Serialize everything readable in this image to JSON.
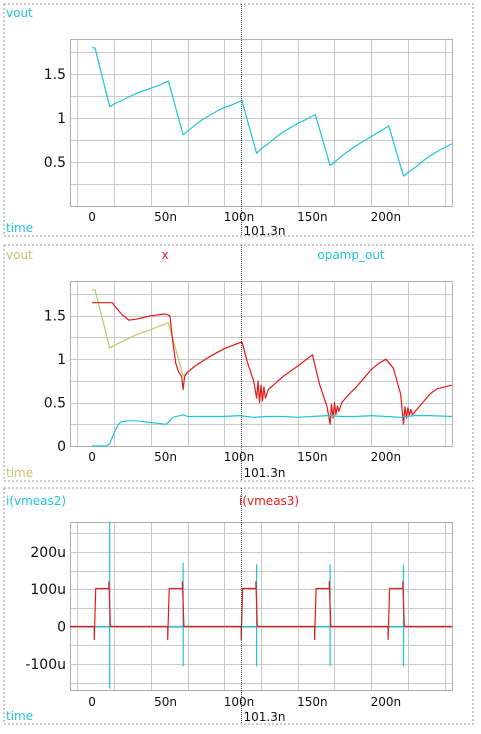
{
  "cursor": {
    "x": 101.3,
    "label": "101.3n"
  },
  "colors": {
    "cyan": "#22c3d8",
    "red": "#e41a1a",
    "olive": "#c4c46a",
    "grid": "#c8c8c8",
    "frame": "#9a9a9a",
    "text": "#111111"
  },
  "chart_data": [
    {
      "type": "line",
      "title": "",
      "xlabel": "time",
      "ylabel": "",
      "xlim": [
        -15,
        245
      ],
      "ylim": [
        0,
        1.9
      ],
      "xticks": [
        0,
        50,
        100,
        150,
        200
      ],
      "xtick_labels": [
        "0",
        "50n",
        "100n",
        "150n",
        "200n"
      ],
      "yticks": [
        0.5,
        1,
        1.5
      ],
      "ytick_labels": [
        "0.5",
        "1",
        "1.5"
      ],
      "series": [
        {
          "name": "vout",
          "color": "#22c3d8",
          "x": [
            0,
            2,
            12,
            15,
            20,
            25,
            30,
            35,
            40,
            45,
            52,
            62,
            65,
            70,
            75,
            80,
            85,
            90,
            95,
            102,
            112,
            115,
            120,
            125,
            130,
            135,
            140,
            145,
            152,
            162,
            165,
            170,
            175,
            180,
            185,
            190,
            195,
            202,
            212,
            215,
            220,
            225,
            230,
            235,
            245
          ],
          "y": [
            1.8,
            1.8,
            1.13,
            1.16,
            1.2,
            1.24,
            1.28,
            1.31,
            1.34,
            1.37,
            1.42,
            0.81,
            0.85,
            0.92,
            0.98,
            1.03,
            1.08,
            1.12,
            1.15,
            1.2,
            0.6,
            0.65,
            0.71,
            0.78,
            0.84,
            0.89,
            0.94,
            0.98,
            1.04,
            0.46,
            0.5,
            0.57,
            0.63,
            0.69,
            0.74,
            0.79,
            0.84,
            0.91,
            0.34,
            0.38,
            0.44,
            0.51,
            0.57,
            0.62,
            0.71
          ]
        }
      ]
    },
    {
      "type": "line",
      "title": "",
      "xlabel": "time",
      "ylabel": "",
      "xlim": [
        -15,
        245
      ],
      "ylim": [
        0,
        1.9
      ],
      "xticks": [
        0,
        50,
        100,
        150,
        200
      ],
      "xtick_labels": [
        "0",
        "50n",
        "100n",
        "150n",
        "200n"
      ],
      "yticks": [
        0,
        0.5,
        1,
        1.5
      ],
      "ytick_labels": [
        "0",
        "0.5",
        "1",
        "1.5"
      ],
      "series": [
        {
          "name": "vout",
          "color": "#c4c46a",
          "x": [
            0,
            2,
            12,
            20,
            30,
            40,
            52,
            62,
            70,
            80,
            90,
            102
          ],
          "y": [
            1.8,
            1.8,
            1.13,
            1.2,
            1.28,
            1.34,
            1.42,
            0.81,
            0.92,
            1.03,
            1.12,
            1.2
          ]
        },
        {
          "name": "x",
          "color": "#e41a1a",
          "x": [
            0,
            14,
            15,
            20,
            25,
            30,
            35,
            40,
            45,
            50,
            53,
            55,
            57,
            59,
            61,
            62,
            63,
            65,
            70,
            80,
            90,
            102,
            106,
            110,
            112,
            113,
            114,
            115,
            116,
            117,
            118,
            120,
            130,
            140,
            150,
            155,
            160,
            162,
            163,
            164,
            165,
            166,
            167,
            168,
            170,
            175,
            180,
            185,
            190,
            195,
            200,
            205,
            210,
            212,
            213,
            214,
            215,
            216,
            217,
            218,
            220,
            225,
            230,
            235,
            245
          ],
          "y": [
            1.65,
            1.65,
            1.62,
            1.52,
            1.45,
            1.46,
            1.48,
            1.5,
            1.51,
            1.52,
            1.5,
            1.2,
            0.95,
            0.85,
            0.8,
            0.65,
            0.8,
            0.85,
            0.92,
            1.03,
            1.12,
            1.2,
            0.95,
            0.75,
            0.55,
            0.75,
            0.5,
            0.7,
            0.52,
            0.68,
            0.55,
            0.65,
            0.8,
            0.92,
            1.05,
            0.7,
            0.45,
            0.25,
            0.48,
            0.32,
            0.5,
            0.36,
            0.46,
            0.4,
            0.5,
            0.6,
            0.68,
            0.78,
            0.88,
            0.95,
            1.0,
            0.9,
            0.6,
            0.25,
            0.45,
            0.32,
            0.44,
            0.35,
            0.42,
            0.36,
            0.4,
            0.5,
            0.6,
            0.66,
            0.7
          ]
        },
        {
          "name": "opamp_out",
          "color": "#22c3d8",
          "x": [
            0,
            10,
            12,
            15,
            18,
            20,
            25,
            30,
            35,
            40,
            45,
            50,
            52,
            55,
            60,
            62,
            65,
            70,
            80,
            90,
            100,
            110,
            120,
            130,
            140,
            150,
            160,
            170,
            180,
            190,
            200,
            210,
            220,
            230,
            245
          ],
          "y": [
            0,
            0,
            0.03,
            0.15,
            0.25,
            0.28,
            0.29,
            0.29,
            0.28,
            0.27,
            0.26,
            0.25,
            0.27,
            0.33,
            0.35,
            0.36,
            0.34,
            0.34,
            0.34,
            0.34,
            0.35,
            0.33,
            0.34,
            0.34,
            0.33,
            0.34,
            0.35,
            0.34,
            0.34,
            0.35,
            0.34,
            0.33,
            0.35,
            0.35,
            0.34
          ]
        }
      ]
    },
    {
      "type": "line",
      "title": "",
      "xlabel": "time",
      "ylabel": "",
      "xlim": [
        -15,
        245
      ],
      "ylim": [
        -170,
        280
      ],
      "xticks": [
        0,
        50,
        100,
        150,
        200
      ],
      "xtick_labels": [
        "0",
        "50n",
        "100n",
        "150n",
        "200n"
      ],
      "yticks": [
        -100,
        0,
        100,
        200
      ],
      "ytick_labels": [
        "-100u",
        "0",
        "100u",
        "200u"
      ],
      "series": [
        {
          "name": "i(vmeas2)",
          "color": "#22c3d8",
          "x": [
            -15,
            12,
            12.01,
            12.02,
            12.03,
            62,
            62.01,
            62.02,
            62.03,
            112,
            112.01,
            112.02,
            112.03,
            162,
            162.01,
            162.02,
            162.03,
            212,
            212.01,
            212.02,
            212.03,
            245
          ],
          "y": [
            0,
            0,
            280,
            -165,
            0,
            0,
            170,
            -105,
            0,
            0,
            165,
            -105,
            0,
            0,
            165,
            -105,
            0,
            0,
            165,
            -105,
            0,
            0
          ]
        },
        {
          "name": "i(vmeas3)",
          "color": "#e41a1a",
          "x": [
            -15,
            1.5,
            1.51,
            2.5,
            11.5,
            11.51,
            12.5,
            51.5,
            51.51,
            52.5,
            61.5,
            61.51,
            62.5,
            101.5,
            101.51,
            102.5,
            111.5,
            111.51,
            112.5,
            151.5,
            151.51,
            152.5,
            161.5,
            161.51,
            162.5,
            201.5,
            201.51,
            202.5,
            211.5,
            211.51,
            212.5,
            245
          ],
          "y": [
            0,
            0,
            -35,
            102,
            102,
            120,
            0,
            0,
            -35,
            102,
            102,
            120,
            0,
            0,
            -35,
            102,
            102,
            120,
            0,
            0,
            -35,
            102,
            102,
            120,
            0,
            0,
            -35,
            102,
            102,
            120,
            0,
            0
          ]
        }
      ]
    }
  ]
}
